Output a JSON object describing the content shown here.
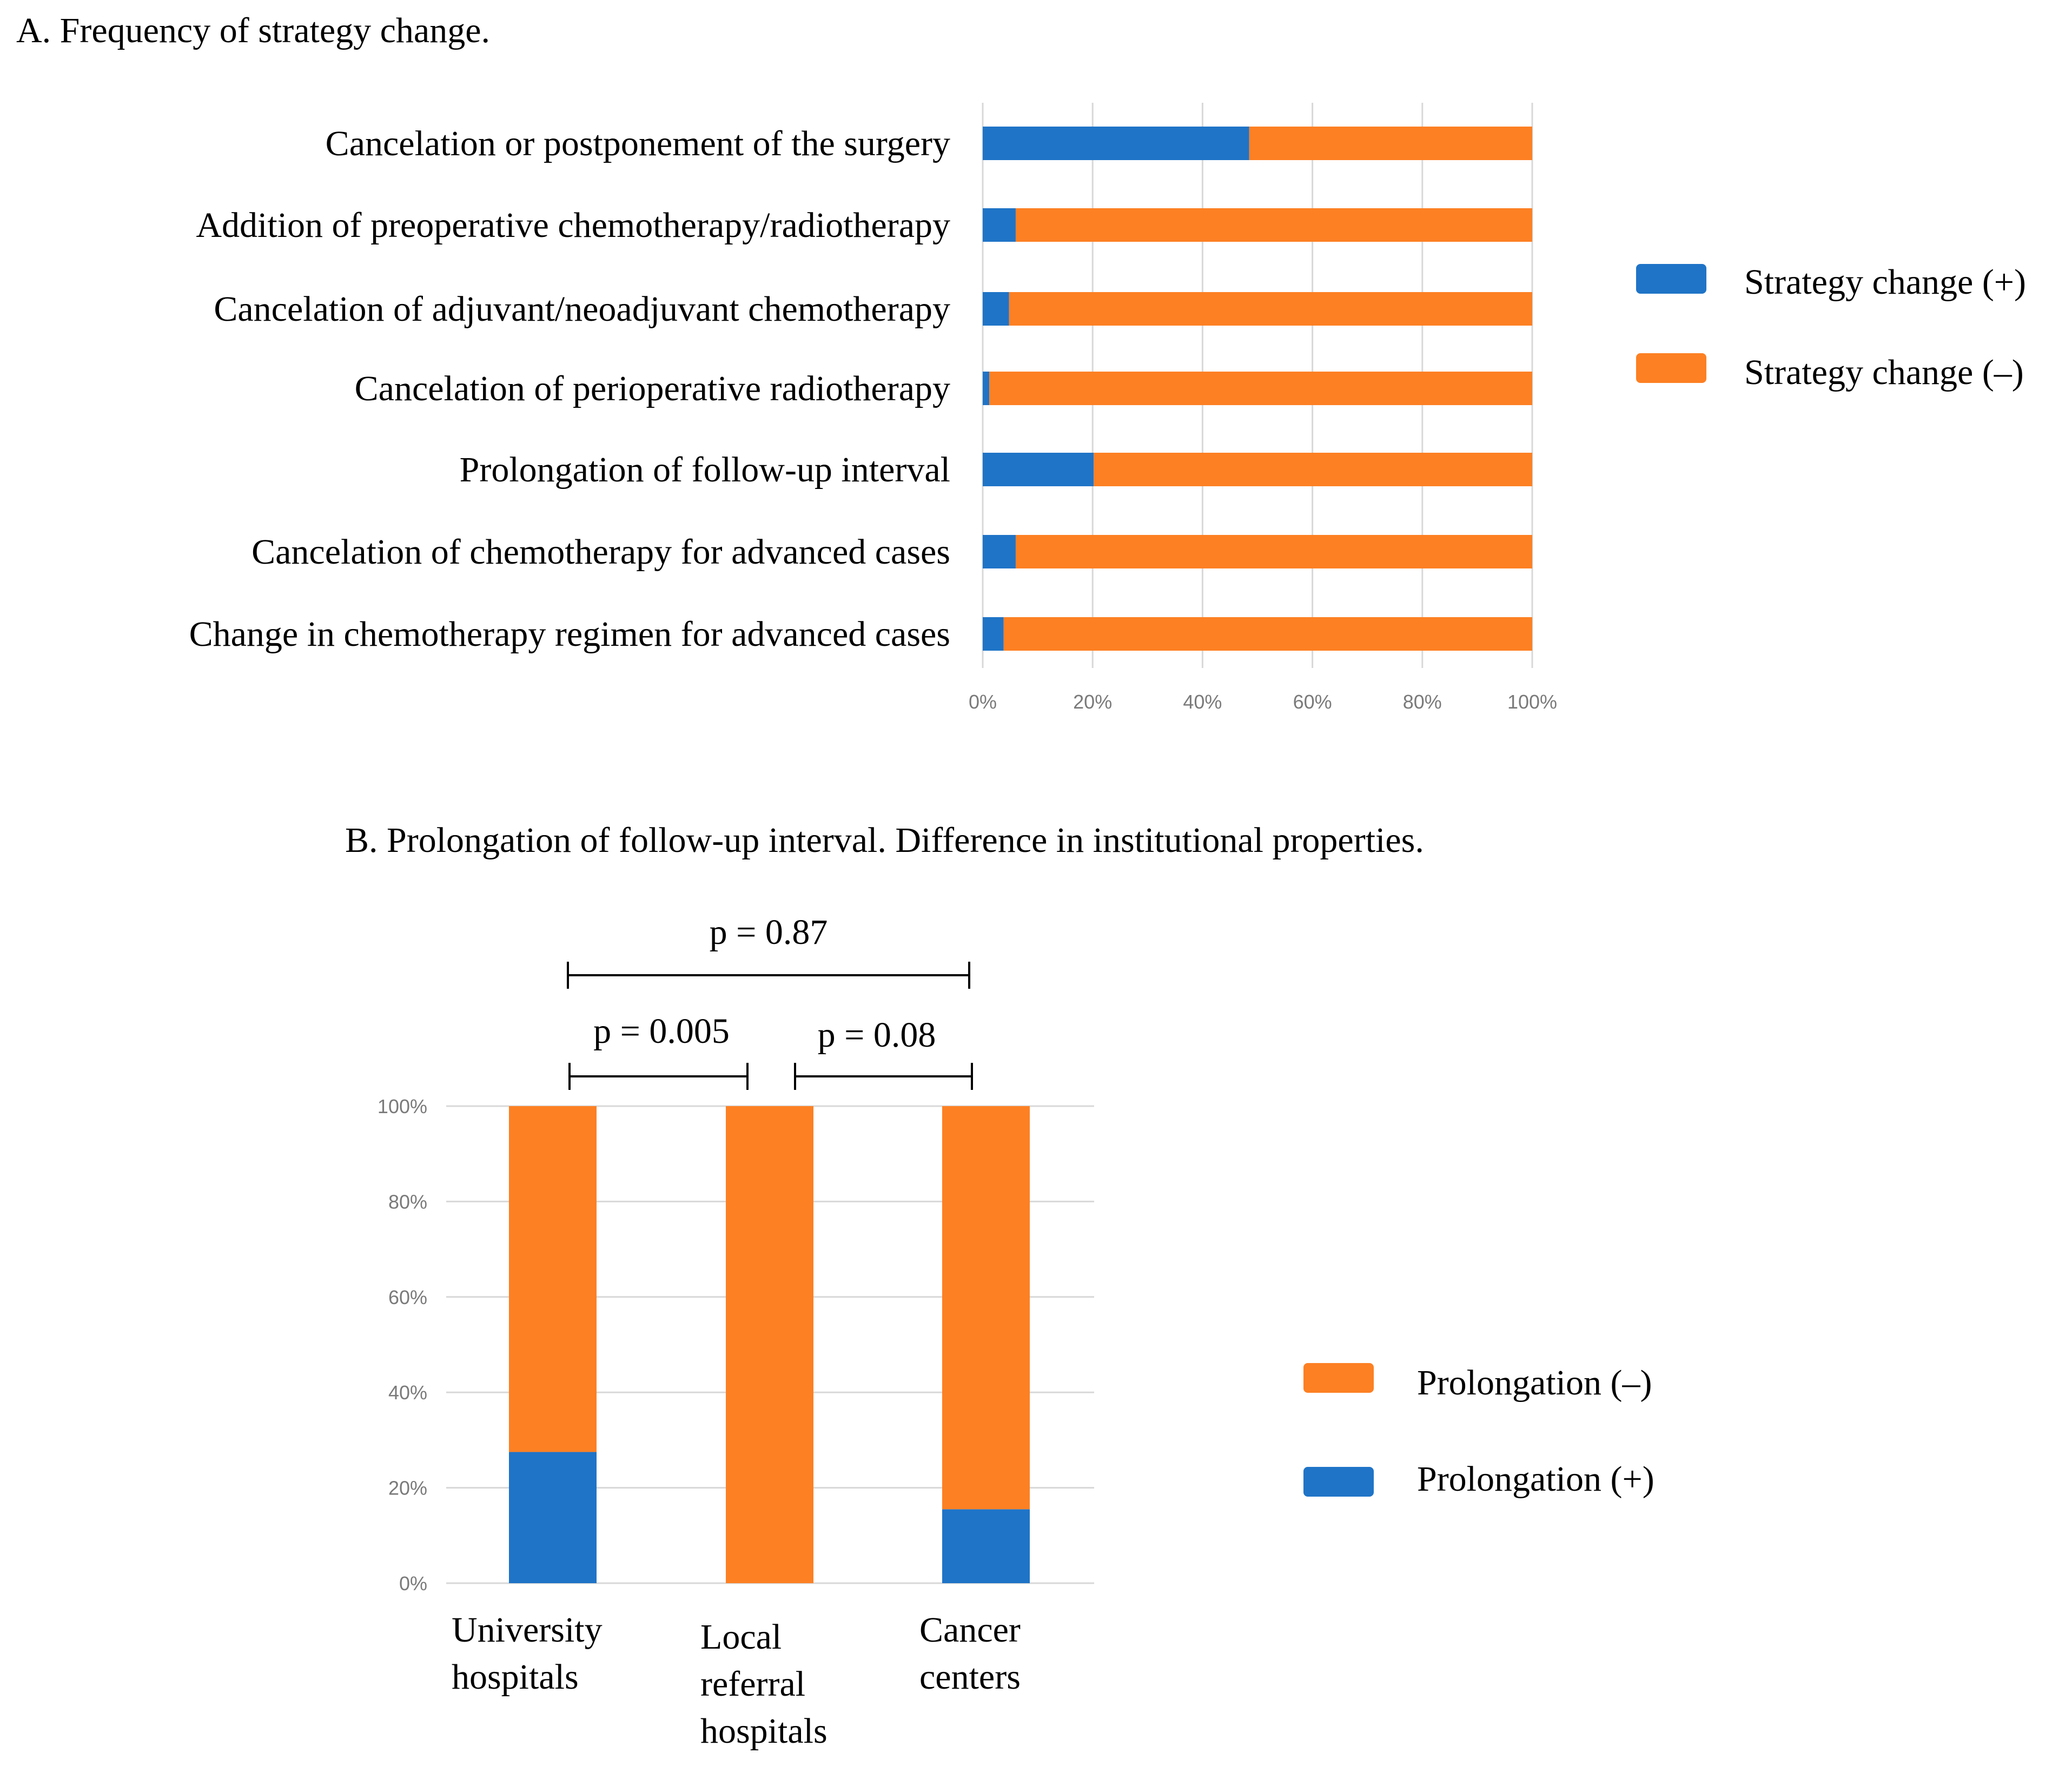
{
  "colors": {
    "blue": "#1f74c7",
    "orange": "#fd8023"
  },
  "chart_data": [
    {
      "type": "bar",
      "orientation": "horizontal",
      "stacked": true,
      "title": "A. Frequency of strategy change.",
      "categories": [
        "Cancelation or postponement of the surgery",
        "Addition of preoperative chemotherapy/radiotherapy",
        "Cancelation of adjuvant/neoadjuvant chemotherapy",
        "Cancelation of perioperative radiotherapy",
        "Prolongation of follow-up interval",
        "Cancelation of chemotherapy for advanced cases",
        "Change in chemotherapy regimen for advanced cases"
      ],
      "series": [
        {
          "name": "Strategy change (+)",
          "color": "#1f74c7",
          "values": [
            48.5,
            6,
            4.8,
            1.2,
            20.2,
            6,
            3.8
          ]
        },
        {
          "name": "Strategy change (–)",
          "color": "#fd8023",
          "values": [
            51.5,
            94,
            95.2,
            98.8,
            79.8,
            94,
            96.2
          ]
        }
      ],
      "xlim": [
        0,
        100
      ],
      "xticks": [
        "0%",
        "20%",
        "40%",
        "60%",
        "80%",
        "100%"
      ],
      "xlabel": "",
      "ylabel": "",
      "grid": true,
      "legend": "right"
    },
    {
      "type": "bar",
      "orientation": "vertical",
      "stacked": true,
      "title": "B. Prolongation of follow-up interval. Difference in institutional properties.",
      "categories": [
        "University hospitals",
        "Local referral hospitals",
        "Cancer centers"
      ],
      "category_lines": [
        [
          "University",
          "hospitals"
        ],
        [
          "Local",
          "referral",
          "hospitals"
        ],
        [
          "Cancer",
          "centers"
        ]
      ],
      "series": [
        {
          "name": "Prolongation (+)",
          "color": "#1f74c7",
          "values": [
            27.5,
            0,
            15.5
          ]
        },
        {
          "name": "Prolongation (–)",
          "color": "#fd8023",
          "values": [
            72.5,
            100,
            84.5
          ]
        }
      ],
      "ylim": [
        0,
        100
      ],
      "yticks": [
        "0%",
        "20%",
        "40%",
        "60%",
        "80%",
        "100%"
      ],
      "xlabel": "",
      "ylabel": "",
      "grid": true,
      "legend": "right",
      "legend_order": [
        "Prolongation (–)",
        "Prolongation (+)"
      ],
      "annotations": [
        {
          "label": "p = 0.87",
          "from": 0,
          "to": 2
        },
        {
          "label": "p = 0.005",
          "from": 0,
          "to": 1
        },
        {
          "label": "p = 0.08",
          "from": 1,
          "to": 2
        }
      ]
    }
  ]
}
